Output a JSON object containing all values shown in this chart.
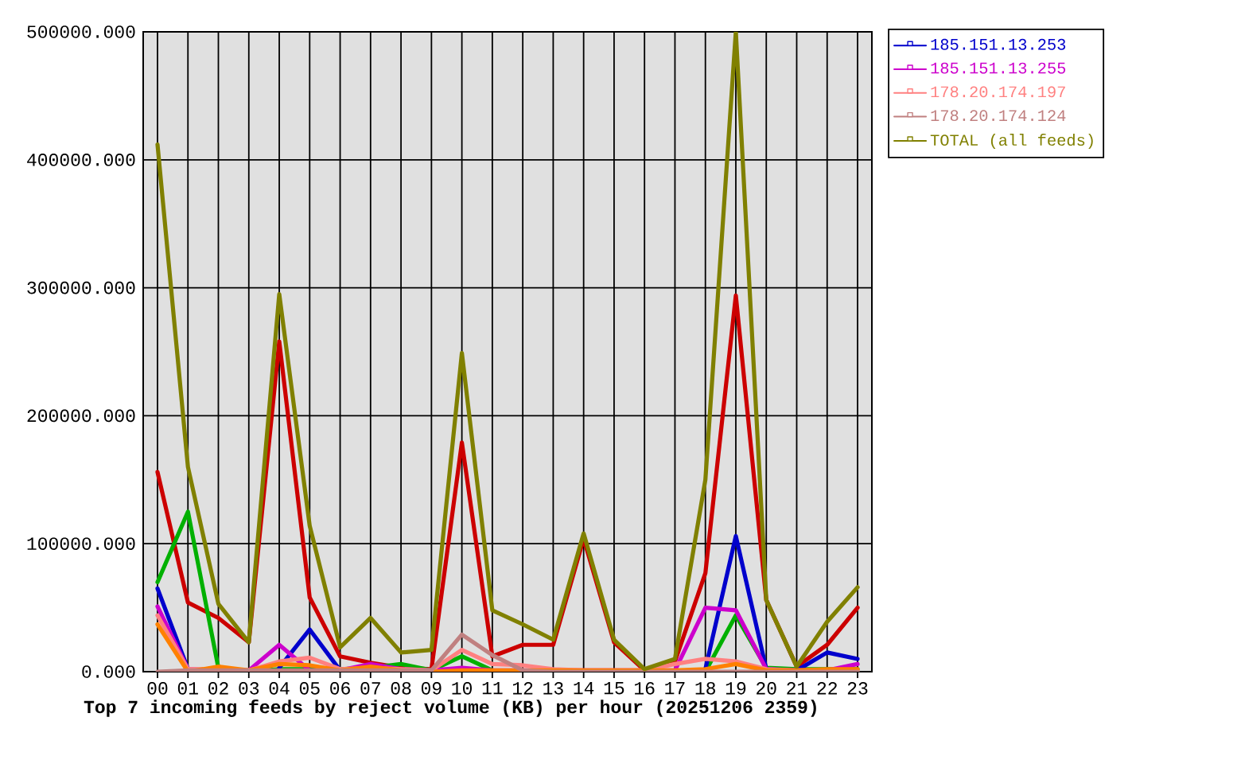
{
  "chart_data": {
    "type": "line",
    "title": "Top 7 incoming feeds by reject volume (KB) per hour (20251206 2359)",
    "categories": [
      "00",
      "01",
      "02",
      "03",
      "04",
      "05",
      "06",
      "07",
      "08",
      "09",
      "10",
      "11",
      "12",
      "13",
      "14",
      "15",
      "16",
      "17",
      "18",
      "19",
      "20",
      "21",
      "22",
      "23"
    ],
    "series": [
      {
        "color": "#cc0000",
        "values": [
          156000,
          54000,
          42000,
          23000,
          258000,
          58000,
          12000,
          7000,
          3000,
          2000,
          179000,
          12000,
          21000,
          21000,
          104000,
          23000,
          1000,
          8000,
          77000,
          294000,
          56000,
          4000,
          21000,
          50000
        ]
      },
      {
        "color": "#00b000",
        "values": [
          70000,
          125000,
          3000,
          0,
          2000,
          2000,
          2000,
          3000,
          6000,
          1000,
          12000,
          1000,
          0,
          0,
          0,
          0,
          0,
          0,
          0,
          44000,
          3000,
          2000,
          2000,
          2000
        ]
      },
      {
        "name": "185.151.13.253",
        "color": "#0000cc",
        "values": [
          65000,
          2000,
          null,
          null,
          3000,
          33000,
          1000,
          null,
          null,
          null,
          null,
          null,
          null,
          null,
          null,
          null,
          null,
          null,
          2000,
          106000,
          2000,
          1000,
          15000,
          10000
        ]
      },
      {
        "name": "185.151.13.255",
        "color": "#cc00cc",
        "values": [
          51000,
          2000,
          1000,
          1000,
          21000,
          1000,
          1000,
          6000,
          2000,
          1000,
          3000,
          1000,
          1000,
          1000,
          1000,
          1000,
          1000,
          1000,
          50000,
          48000,
          2000,
          1000,
          1000,
          6000
        ]
      },
      {
        "name": "178.20.174.197",
        "color": "#ff8080",
        "values": [
          44000,
          2000,
          2000,
          1000,
          8000,
          11000,
          2000,
          3000,
          2000,
          1000,
          17000,
          6000,
          5000,
          2000,
          1000,
          1000,
          1000,
          6000,
          10000,
          8000,
          2000,
          1000,
          1000,
          1000
        ]
      },
      {
        "color": "#ff8000",
        "values": [
          37000,
          0,
          4000,
          1000,
          6000,
          5000,
          1000,
          4000,
          1000,
          0,
          1000,
          1000,
          1000,
          1000,
          1000,
          1000,
          1000,
          1000,
          2000,
          6000,
          1000,
          1000,
          2000,
          2000
        ]
      },
      {
        "name": "178.20.174.124",
        "color": "#c08080",
        "values": [
          0,
          1000,
          1000,
          1000,
          1000,
          1000,
          1000,
          1000,
          1000,
          1000,
          29000,
          13000,
          1000,
          0,
          0,
          0,
          0,
          0,
          0,
          0,
          0,
          0,
          0,
          0
        ]
      },
      {
        "name": "TOTAL (all feeds)",
        "color": "#808000",
        "values": [
          412000,
          160000,
          53000,
          23000,
          295000,
          114000,
          19000,
          42000,
          15000,
          17000,
          249000,
          48000,
          37000,
          25000,
          108000,
          25000,
          2000,
          10000,
          150000,
          500000,
          56000,
          4000,
          39000,
          66000
        ]
      }
    ],
    "ylim": [
      0,
      500000
    ],
    "yticks": [
      {
        "value": 0,
        "label": "0.000"
      },
      {
        "value": 100000,
        "label": "100000.000"
      },
      {
        "value": 200000,
        "label": "200000.000"
      },
      {
        "value": 300000,
        "label": "300000.000"
      },
      {
        "value": 400000,
        "label": "400000.000"
      },
      {
        "value": 500000,
        "label": "500000.000"
      }
    ],
    "grid": true,
    "legend": "right"
  }
}
